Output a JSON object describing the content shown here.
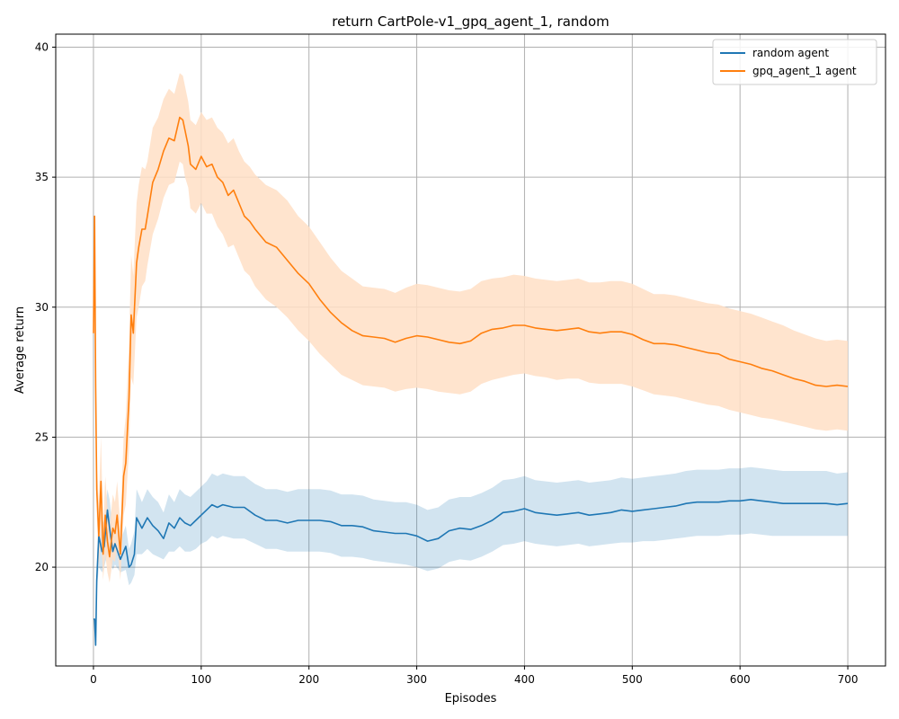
{
  "chart_data": {
    "type": "line",
    "title": "return CartPole-v1_gpq_agent_1, random",
    "xlabel": "Episodes",
    "ylabel": "Average return",
    "xlim": [
      -35,
      735
    ],
    "ylim": [
      16.2,
      40.5
    ],
    "xticks": [
      0,
      100,
      200,
      300,
      400,
      500,
      600,
      700
    ],
    "yticks": [
      20,
      25,
      30,
      35,
      40
    ],
    "grid": true,
    "legend_position": "upper right",
    "series": [
      {
        "name": "random agent",
        "color": "#1f77b4",
        "band_color": "#1f77b4",
        "x": [
          0,
          1,
          2,
          3,
          5,
          8,
          10,
          13,
          15,
          18,
          20,
          25,
          30,
          33,
          35,
          38,
          40,
          45,
          50,
          55,
          60,
          65,
          70,
          75,
          80,
          85,
          90,
          95,
          100,
          105,
          110,
          115,
          120,
          130,
          140,
          150,
          160,
          170,
          180,
          190,
          200,
          210,
          220,
          230,
          240,
          250,
          260,
          270,
          280,
          290,
          300,
          310,
          320,
          330,
          340,
          350,
          360,
          370,
          380,
          390,
          400,
          410,
          420,
          430,
          440,
          450,
          460,
          470,
          480,
          490,
          500,
          510,
          520,
          530,
          540,
          550,
          560,
          570,
          580,
          590,
          600,
          610,
          620,
          630,
          640,
          650,
          660,
          670,
          680,
          690,
          700
        ],
        "y": [
          18.0,
          18.0,
          17.0,
          19.5,
          21.2,
          20.6,
          20.8,
          22.2,
          21.5,
          20.6,
          20.9,
          20.3,
          20.8,
          20.0,
          20.1,
          20.5,
          21.9,
          21.5,
          21.9,
          21.6,
          21.4,
          21.1,
          21.7,
          21.5,
          21.9,
          21.7,
          21.6,
          21.8,
          22.0,
          22.2,
          22.4,
          22.3,
          22.4,
          22.3,
          22.3,
          22.0,
          21.8,
          21.8,
          21.7,
          21.8,
          21.8,
          21.8,
          21.75,
          21.6,
          21.6,
          21.55,
          21.4,
          21.35,
          21.3,
          21.3,
          21.2,
          21.0,
          21.1,
          21.4,
          21.5,
          21.45,
          21.6,
          21.8,
          22.1,
          22.15,
          22.25,
          22.1,
          22.05,
          22.0,
          22.05,
          22.1,
          22.0,
          22.05,
          22.1,
          22.2,
          22.15,
          22.2,
          22.25,
          22.3,
          22.35,
          22.45,
          22.5,
          22.5,
          22.5,
          22.55,
          22.55,
          22.6,
          22.55,
          22.5,
          22.45,
          22.45,
          22.45,
          22.45,
          22.45,
          22.4,
          22.45
        ],
        "lower": [
          18.0,
          18.0,
          17.0,
          19.0,
          20.0,
          19.8,
          20.0,
          20.5,
          20.3,
          19.9,
          20.1,
          19.8,
          19.9,
          19.3,
          19.4,
          19.7,
          20.5,
          20.5,
          20.7,
          20.5,
          20.4,
          20.3,
          20.6,
          20.6,
          20.8,
          20.6,
          20.6,
          20.7,
          20.9,
          21.0,
          21.2,
          21.1,
          21.2,
          21.1,
          21.1,
          20.9,
          20.7,
          20.7,
          20.6,
          20.6,
          20.6,
          20.6,
          20.55,
          20.4,
          20.4,
          20.35,
          20.25,
          20.2,
          20.15,
          20.1,
          20.0,
          19.85,
          19.95,
          20.2,
          20.3,
          20.25,
          20.4,
          20.6,
          20.85,
          20.9,
          21.0,
          20.9,
          20.85,
          20.8,
          20.85,
          20.9,
          20.8,
          20.85,
          20.9,
          20.95,
          20.95,
          21.0,
          21.0,
          21.05,
          21.1,
          21.15,
          21.2,
          21.2,
          21.2,
          21.25,
          21.25,
          21.3,
          21.25,
          21.2,
          21.2,
          21.2,
          21.2,
          21.2,
          21.2,
          21.2,
          21.2
        ],
        "upper": [
          18.0,
          18.0,
          17.0,
          20.0,
          22.3,
          21.8,
          21.7,
          23.0,
          22.6,
          21.5,
          21.8,
          21.0,
          21.6,
          20.7,
          20.9,
          21.4,
          23.0,
          22.5,
          23.0,
          22.7,
          22.5,
          22.1,
          22.8,
          22.5,
          23.0,
          22.8,
          22.7,
          22.9,
          23.1,
          23.3,
          23.6,
          23.5,
          23.6,
          23.5,
          23.5,
          23.2,
          23.0,
          23.0,
          22.9,
          23.0,
          23.0,
          23.0,
          22.95,
          22.8,
          22.8,
          22.75,
          22.6,
          22.55,
          22.5,
          22.5,
          22.4,
          22.2,
          22.3,
          22.6,
          22.7,
          22.7,
          22.85,
          23.05,
          23.35,
          23.4,
          23.5,
          23.35,
          23.3,
          23.25,
          23.3,
          23.35,
          23.25,
          23.3,
          23.35,
          23.45,
          23.4,
          23.45,
          23.5,
          23.55,
          23.6,
          23.7,
          23.75,
          23.75,
          23.75,
          23.8,
          23.8,
          23.85,
          23.8,
          23.75,
          23.7,
          23.7,
          23.7,
          23.7,
          23.7,
          23.6,
          23.65
        ]
      },
      {
        "name": "gpq_agent_1 agent",
        "color": "#ff7f0e",
        "band_color": "#ffdfc6",
        "x": [
          0,
          1,
          2,
          3,
          5,
          7,
          9,
          11,
          13,
          15,
          18,
          20,
          22,
          25,
          28,
          30,
          33,
          35,
          37,
          40,
          42,
          45,
          48,
          50,
          55,
          60,
          65,
          70,
          75,
          80,
          83,
          85,
          88,
          90,
          95,
          100,
          105,
          110,
          115,
          120,
          125,
          130,
          135,
          140,
          145,
          150,
          160,
          170,
          180,
          190,
          200,
          210,
          220,
          230,
          240,
          250,
          260,
          270,
          280,
          290,
          300,
          310,
          320,
          330,
          340,
          350,
          360,
          370,
          380,
          390,
          400,
          410,
          420,
          430,
          440,
          450,
          460,
          470,
          480,
          490,
          500,
          510,
          520,
          530,
          540,
          550,
          560,
          570,
          580,
          590,
          600,
          610,
          620,
          630,
          640,
          650,
          660,
          670,
          680,
          690,
          700
        ],
        "y": [
          29.0,
          33.5,
          27.0,
          23.0,
          21.2,
          23.3,
          20.5,
          22.0,
          21.0,
          20.4,
          21.5,
          21.3,
          22.0,
          20.5,
          23.5,
          24.0,
          26.5,
          29.7,
          29.0,
          31.7,
          32.3,
          33.0,
          33.0,
          33.5,
          34.8,
          35.3,
          36.0,
          36.5,
          36.4,
          37.3,
          37.2,
          36.8,
          36.2,
          35.5,
          35.3,
          35.8,
          35.4,
          35.5,
          35.0,
          34.8,
          34.3,
          34.5,
          34.0,
          33.5,
          33.3,
          33.0,
          32.5,
          32.3,
          31.8,
          31.3,
          30.9,
          30.3,
          29.8,
          29.4,
          29.1,
          28.9,
          28.85,
          28.8,
          28.65,
          28.8,
          28.9,
          28.85,
          28.75,
          28.65,
          28.6,
          28.7,
          29.0,
          29.15,
          29.2,
          29.3,
          29.3,
          29.2,
          29.15,
          29.1,
          29.15,
          29.2,
          29.05,
          29.0,
          29.05,
          29.05,
          28.95,
          28.75,
          28.6,
          28.6,
          28.55,
          28.45,
          28.35,
          28.25,
          28.2,
          28.0,
          27.9,
          27.8,
          27.65,
          27.55,
          27.4,
          27.25,
          27.15,
          27.0,
          26.95,
          27.0,
          26.95
        ],
        "lower": [
          29.0,
          33.5,
          27.0,
          22.0,
          20.0,
          21.5,
          19.5,
          20.5,
          19.8,
          19.4,
          20.3,
          20.2,
          20.8,
          19.5,
          22.0,
          22.4,
          24.5,
          27.3,
          27.0,
          29.6,
          30.0,
          30.8,
          31.0,
          31.6,
          32.8,
          33.4,
          34.2,
          34.7,
          34.8,
          35.6,
          35.5,
          35.0,
          34.6,
          33.8,
          33.6,
          34.0,
          33.6,
          33.6,
          33.1,
          32.8,
          32.3,
          32.4,
          31.9,
          31.4,
          31.2,
          30.8,
          30.3,
          30.0,
          29.6,
          29.1,
          28.7,
          28.2,
          27.8,
          27.4,
          27.2,
          27.0,
          26.95,
          26.9,
          26.75,
          26.85,
          26.9,
          26.85,
          26.75,
          26.7,
          26.65,
          26.75,
          27.05,
          27.2,
          27.3,
          27.4,
          27.45,
          27.35,
          27.3,
          27.2,
          27.25,
          27.25,
          27.1,
          27.05,
          27.05,
          27.05,
          26.95,
          26.8,
          26.65,
          26.6,
          26.55,
          26.45,
          26.35,
          26.25,
          26.2,
          26.05,
          25.95,
          25.85,
          25.75,
          25.7,
          25.6,
          25.5,
          25.4,
          25.3,
          25.25,
          25.3,
          25.25
        ],
        "upper": [
          29.0,
          33.5,
          27.0,
          24.0,
          22.5,
          25.0,
          21.6,
          23.5,
          22.3,
          21.5,
          22.8,
          22.5,
          23.3,
          21.6,
          25.0,
          25.8,
          28.6,
          32.0,
          31.2,
          34.0,
          34.7,
          35.4,
          35.3,
          35.6,
          36.9,
          37.3,
          38.0,
          38.4,
          38.2,
          39.0,
          38.9,
          38.5,
          37.9,
          37.2,
          37.0,
          37.5,
          37.2,
          37.3,
          36.9,
          36.7,
          36.3,
          36.5,
          36.0,
          35.6,
          35.4,
          35.1,
          34.7,
          34.5,
          34.1,
          33.5,
          33.1,
          32.5,
          31.9,
          31.4,
          31.1,
          30.8,
          30.75,
          30.7,
          30.55,
          30.75,
          30.9,
          30.85,
          30.75,
          30.65,
          30.6,
          30.7,
          31.0,
          31.1,
          31.15,
          31.25,
          31.2,
          31.1,
          31.05,
          31.0,
          31.05,
          31.1,
          30.95,
          30.95,
          31.0,
          31.0,
          30.9,
          30.7,
          30.5,
          30.5,
          30.45,
          30.35,
          30.25,
          30.15,
          30.1,
          29.95,
          29.85,
          29.75,
          29.6,
          29.45,
          29.3,
          29.1,
          28.95,
          28.8,
          28.7,
          28.75,
          28.7
        ]
      }
    ]
  }
}
